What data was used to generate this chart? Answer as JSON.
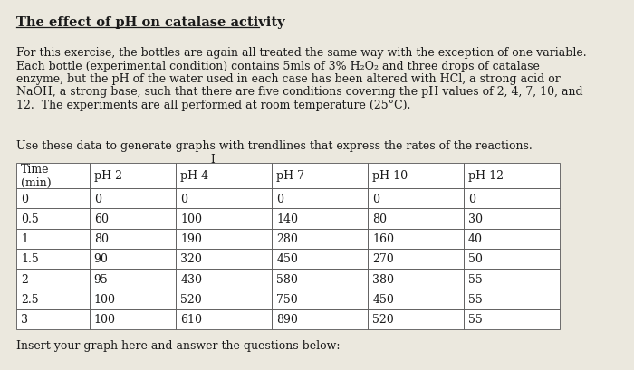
{
  "title": "The effect of pH on catalase activity",
  "para1_lines": [
    "For this exercise, the bottles are again all treated the same way with the exception of one variable.",
    "Each bottle (experimental condition) contains 5mls of 3% H₂O₂ and three drops of catalase",
    "enzyme, but the pH of the water used in each case has been altered with HCl, a strong acid or",
    "NaOH, a strong base, such that there are five conditions covering the pH values of 2, 4, 7, 10, and",
    "12.  The experiments are all performed at room temperature (25°C)."
  ],
  "para2": "Use these data to generate graphs with trendlines that express the rates of the reactions.",
  "footer": "Insert your graph here and answer the questions below:",
  "col_headers": [
    "Time\n(min)",
    "pH 2",
    "pH 4",
    "pH 7",
    "pH 10",
    "pH 12"
  ],
  "time_col": [
    0,
    0.5,
    1,
    1.5,
    2,
    2.5,
    3
  ],
  "table_data": [
    [
      0,
      0,
      0,
      0,
      0
    ],
    [
      60,
      100,
      140,
      80,
      30
    ],
    [
      80,
      190,
      280,
      160,
      40
    ],
    [
      90,
      320,
      450,
      270,
      50
    ],
    [
      95,
      430,
      580,
      380,
      55
    ],
    [
      100,
      520,
      750,
      450,
      55
    ],
    [
      100,
      610,
      890,
      520,
      55
    ]
  ],
  "bg_color": "#ebe8de",
  "text_color": "#1a1a1a",
  "font_size_title": 10.5,
  "font_size_body": 9.0,
  "font_size_table": 9.0
}
